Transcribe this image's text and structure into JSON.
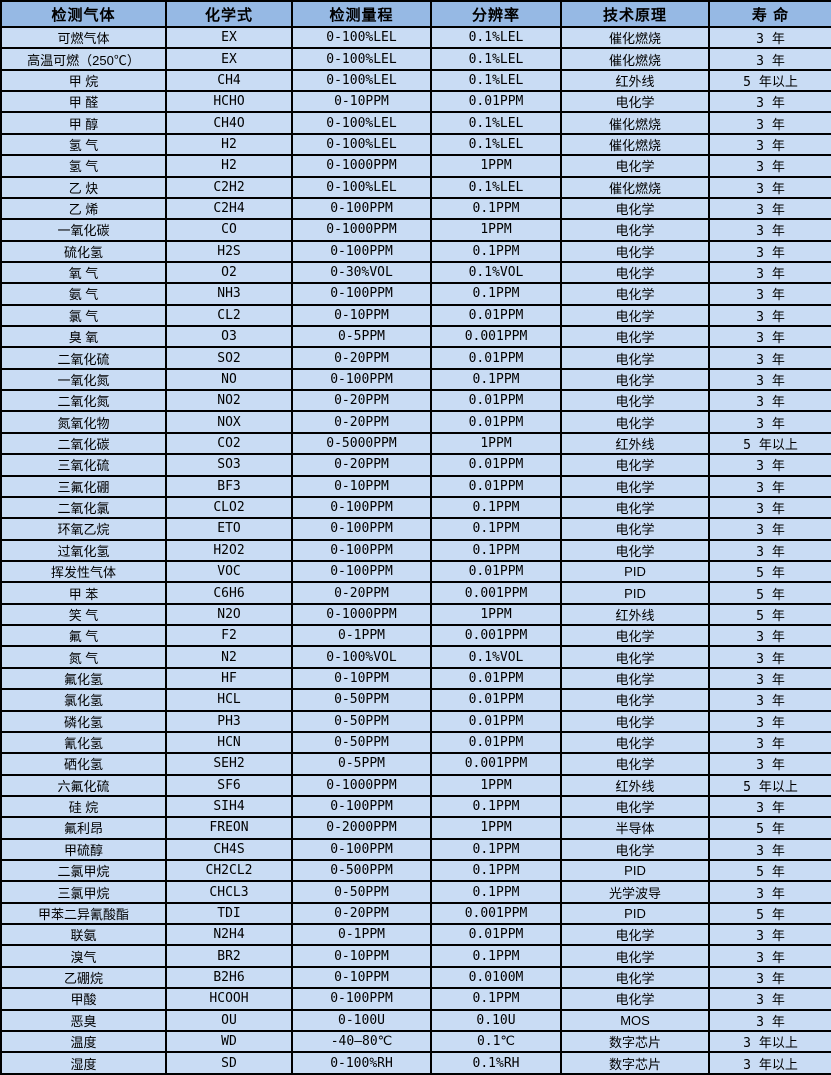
{
  "colors": {
    "header_bg": "#96b9e4",
    "row_bg": "#c9dcf4",
    "border": "#000000",
    "text": "#000000"
  },
  "table": {
    "columns": [
      "检测气体",
      "化学式",
      "检测量程",
      "分辨率",
      "技术原理",
      "寿 命"
    ],
    "rows": [
      [
        "可燃气体",
        "EX",
        "0-100%LEL",
        "0.1%LEL",
        "催化燃烧",
        "3 年"
      ],
      [
        "高温可燃（250℃）",
        "EX",
        "0-100%LEL",
        "0.1%LEL",
        "催化燃烧",
        "3 年"
      ],
      [
        "甲 烷",
        "CH4",
        "0-100%LEL",
        "0.1%LEL",
        "红外线",
        "5 年以上"
      ],
      [
        "甲 醛",
        "HCHO",
        "0-10PPM",
        "0.01PPM",
        "电化学",
        "3 年"
      ],
      [
        "甲 醇",
        "CH4O",
        "0-100%LEL",
        "0.1%LEL",
        "催化燃烧",
        "3 年"
      ],
      [
        "氢 气",
        "H2",
        "0-100%LEL",
        "0.1%LEL",
        "催化燃烧",
        "3 年"
      ],
      [
        "氢 气",
        "H2",
        "0-1000PPM",
        "1PPM",
        "电化学",
        "3 年"
      ],
      [
        "乙 炔",
        "C2H2",
        "0-100%LEL",
        "0.1%LEL",
        "催化燃烧",
        "3 年"
      ],
      [
        "乙 烯",
        "C2H4",
        "0-100PPM",
        "0.1PPM",
        "电化学",
        "3 年"
      ],
      [
        "一氧化碳",
        "CO",
        "0-1000PPM",
        "1PPM",
        "电化学",
        "3 年"
      ],
      [
        "硫化氢",
        "H2S",
        "0-100PPM",
        "0.1PPM",
        "电化学",
        "3 年"
      ],
      [
        "氧 气",
        "O2",
        "0-30%VOL",
        "0.1%VOL",
        "电化学",
        "3 年"
      ],
      [
        "氨 气",
        "NH3",
        "0-100PPM",
        "0.1PPM",
        "电化学",
        "3 年"
      ],
      [
        "氯 气",
        "CL2",
        "0-10PPM",
        "0.01PPM",
        "电化学",
        "3 年"
      ],
      [
        "臭 氧",
        "O3",
        "0-5PPM",
        "0.001PPM",
        "电化学",
        "3 年"
      ],
      [
        "二氧化硫",
        "SO2",
        "0-20PPM",
        "0.01PPM",
        "电化学",
        "3 年"
      ],
      [
        "一氧化氮",
        "NO",
        "0-100PPM",
        "0.1PPM",
        "电化学",
        "3 年"
      ],
      [
        "二氧化氮",
        "NO2",
        "0-20PPM",
        "0.01PPM",
        "电化学",
        "3 年"
      ],
      [
        "氮氧化物",
        "NOX",
        "0-20PPM",
        "0.01PPM",
        "电化学",
        "3 年"
      ],
      [
        "二氧化碳",
        "CO2",
        "0-5000PPM",
        "1PPM",
        "红外线",
        "5 年以上"
      ],
      [
        "三氧化硫",
        "SO3",
        "0-20PPM",
        "0.01PPM",
        "电化学",
        "3 年"
      ],
      [
        "三氟化硼",
        "BF3",
        "0-10PPM",
        "0.01PPM",
        "电化学",
        "3 年"
      ],
      [
        "二氧化氯",
        "CLO2",
        "0-100PPM",
        "0.1PPM",
        "电化学",
        "3 年"
      ],
      [
        "环氧乙烷",
        "ETO",
        "0-100PPM",
        "0.1PPM",
        "电化学",
        "3 年"
      ],
      [
        "过氧化氢",
        "H2O2",
        "0-100PPM",
        "0.1PPM",
        "电化学",
        "3 年"
      ],
      [
        "挥发性气体",
        "VOC",
        "0-100PPM",
        "0.01PPM",
        "PID",
        "5 年"
      ],
      [
        "甲 苯",
        "C6H6",
        "0-20PPM",
        "0.001PPM",
        "PID",
        "5 年"
      ],
      [
        "笑 气",
        "N2O",
        "0-1000PPM",
        "1PPM",
        "红外线",
        "5 年"
      ],
      [
        "氟 气",
        "F2",
        "0-1PPM",
        "0.001PPM",
        "电化学",
        "3 年"
      ],
      [
        "氮 气",
        "N2",
        "0-100%VOL",
        "0.1%VOL",
        "电化学",
        "3 年"
      ],
      [
        "氟化氢",
        "HF",
        "0-10PPM",
        "0.01PPM",
        "电化学",
        "3 年"
      ],
      [
        "氯化氢",
        "HCL",
        "0-50PPM",
        "0.01PPM",
        "电化学",
        "3 年"
      ],
      [
        "磷化氢",
        "PH3",
        "0-50PPM",
        "0.01PPM",
        "电化学",
        "3 年"
      ],
      [
        "氰化氢",
        "HCN",
        "0-50PPM",
        "0.01PPM",
        "电化学",
        "3 年"
      ],
      [
        "硒化氢",
        "SEH2",
        "0-5PPM",
        "0.001PPM",
        "电化学",
        "3 年"
      ],
      [
        "六氟化硫",
        "SF6",
        "0-1000PPM",
        "1PPM",
        "红外线",
        "5 年以上"
      ],
      [
        "硅 烷",
        "SIH4",
        "0-100PPM",
        "0.1PPM",
        "电化学",
        "3 年"
      ],
      [
        "氟利昂",
        "FREON",
        "0-2000PPM",
        "1PPM",
        "半导体",
        "5 年"
      ],
      [
        "甲硫醇",
        "CH4S",
        "0-100PPM",
        "0.1PPM",
        "电化学",
        "3 年"
      ],
      [
        "二氯甲烷",
        "CH2CL2",
        "0-500PPM",
        "0.1PPM",
        "PID",
        "5 年"
      ],
      [
        "三氯甲烷",
        "CHCL3",
        "0-50PPM",
        "0.1PPM",
        "光学波导",
        "3 年"
      ],
      [
        "甲苯二异氰酸酯",
        "TDI",
        "0-20PPM",
        "0.001PPM",
        "PID",
        "5 年"
      ],
      [
        "联氨",
        "N2H4",
        "0-1PPM",
        "0.01PPM",
        "电化学",
        "3 年"
      ],
      [
        "溴气",
        "BR2",
        "0-10PPM",
        "0.1PPM",
        "电化学",
        "3 年"
      ],
      [
        "乙硼烷",
        "B2H6",
        "0-10PPM",
        "0.0100M",
        "电化学",
        "3 年"
      ],
      [
        "甲酸",
        "HCOOH",
        "0-100PPM",
        "0.1PPM",
        "电化学",
        "3 年"
      ],
      [
        "恶臭",
        "OU",
        "0-100U",
        "0.10U",
        "MOS",
        "3 年"
      ],
      [
        "温度",
        "WD",
        "-40—80℃",
        "0.1℃",
        "数字芯片",
        "3 年以上"
      ],
      [
        "湿度",
        "SD",
        "0-100%RH",
        "0.1%RH",
        "数字芯片",
        "3 年以上"
      ]
    ]
  }
}
